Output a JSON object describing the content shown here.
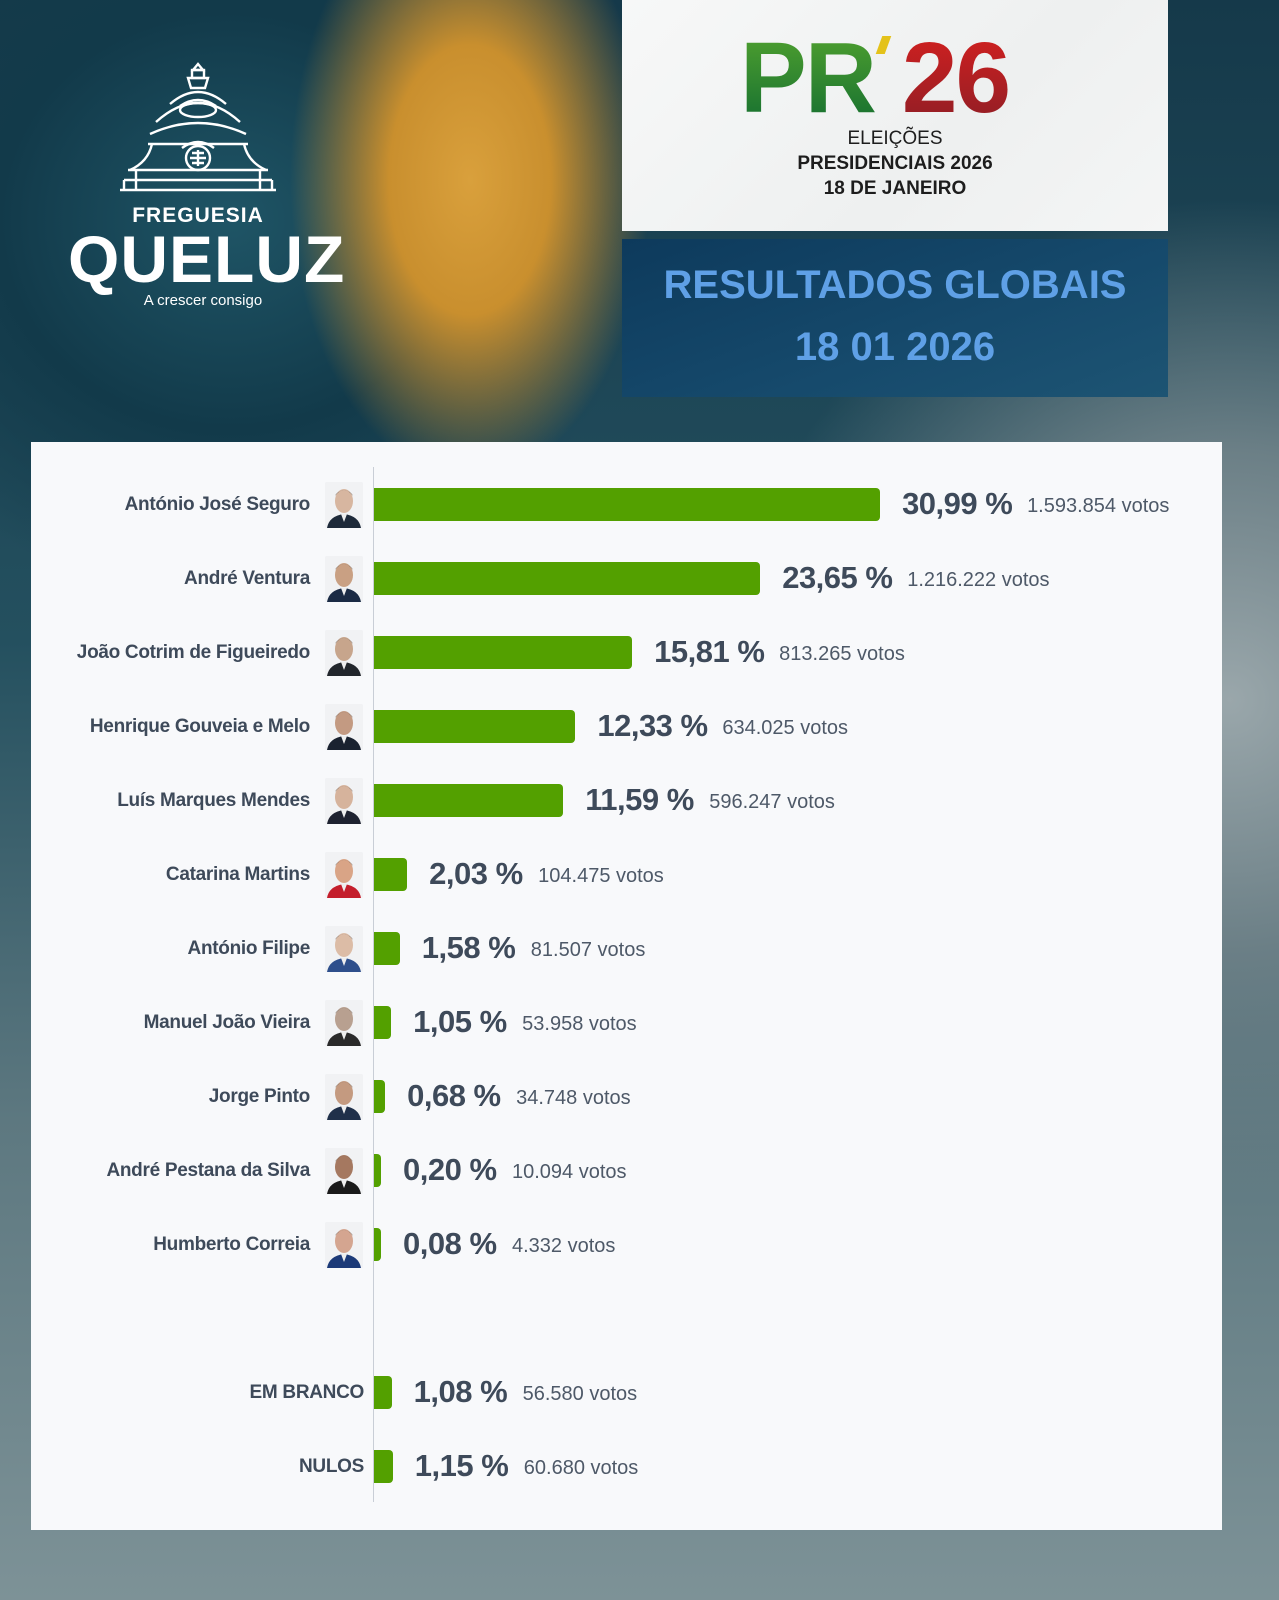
{
  "logo": {
    "org_label": "FREGUESIA",
    "org_name": "QUELUZ",
    "tagline": "A crescer consigo",
    "icon": "dome-icon"
  },
  "election_brand": {
    "logo_prefix": "PR",
    "logo_year": "26",
    "line1": "ELEIÇÕES",
    "line2": "PRESIDENCIAIS 2026",
    "line3": "18 DE JANEIRO",
    "colors": {
      "green": "#2a8a2c",
      "red": "#b01e24",
      "yellow": "#e4c21a"
    }
  },
  "results_header": {
    "title": "RESULTADOS GLOBAIS",
    "date": "18 01 2026",
    "text_color": "#5fa0e6",
    "bg_color": "#0d3a5c"
  },
  "chart_data": {
    "type": "bar",
    "orientation": "horizontal",
    "title": "RESULTADOS GLOBAIS 18 01 2026",
    "xlabel": "",
    "ylabel": "",
    "grid": false,
    "bar_color": "#53a000",
    "categories": [
      "António José Seguro",
      "André Ventura",
      "João Cotrim de Figueiredo",
      "Henrique Gouveia e Melo",
      "Luís Marques Mendes",
      "Catarina Martins",
      "António Filipe",
      "Manuel João Vieira",
      "Jorge Pinto",
      "André Pestana da Silva",
      "Humberto Correia",
      "EM BRANCO",
      "NULOS"
    ],
    "series": [
      {
        "name": "Percentagem",
        "values": [
          30.99,
          23.65,
          15.81,
          12.33,
          11.59,
          2.03,
          1.58,
          1.05,
          0.68,
          0.2,
          0.08,
          1.08,
          1.15
        ]
      },
      {
        "name": "Votos",
        "values": [
          1593854,
          1216222,
          813265,
          634025,
          596247,
          104475,
          81507,
          53958,
          34748,
          10094,
          4332,
          56580,
          60680
        ]
      }
    ]
  },
  "rows": [
    {
      "name": "António José Seguro",
      "pct": "30,99 %",
      "votes": "1.593.854 votos",
      "value": 30.99
    },
    {
      "name": "André Ventura",
      "pct": "23,65 %",
      "votes": "1.216.222 votos",
      "value": 23.65
    },
    {
      "name": "João Cotrim de Figueiredo",
      "pct": "15,81 %",
      "votes": "813.265 votos",
      "value": 15.81
    },
    {
      "name": "Henrique Gouveia e Melo",
      "pct": "12,33 %",
      "votes": "634.025 votos",
      "value": 12.33
    },
    {
      "name": "Luís Marques Mendes",
      "pct": "11,59 %",
      "votes": "596.247 votos",
      "value": 11.59
    },
    {
      "name": "Catarina Martins",
      "pct": "2,03 %",
      "votes": "104.475 votos",
      "value": 2.03
    },
    {
      "name": "António Filipe",
      "pct": "1,58 %",
      "votes": "81.507 votos",
      "value": 1.58
    },
    {
      "name": "Manuel João Vieira",
      "pct": "1,05 %",
      "votes": "53.958 votos",
      "value": 1.05
    },
    {
      "name": "Jorge Pinto",
      "pct": "0,68 %",
      "votes": "34.748 votos",
      "value": 0.68
    },
    {
      "name": "André Pestana da Silva",
      "pct": "0,20 %",
      "votes": "10.094 votos",
      "value": 0.2
    },
    {
      "name": "Humberto Correia",
      "pct": "0,08 %",
      "votes": "4.332 votos",
      "value": 0.08
    }
  ],
  "special_rows": [
    {
      "name": "EM BRANCO",
      "pct": "1,08 %",
      "votes": "56.580 votos",
      "value": 1.08
    },
    {
      "name": "NULOS",
      "pct": "1,15 %",
      "votes": "60.680 votos",
      "value": 1.15
    }
  ]
}
